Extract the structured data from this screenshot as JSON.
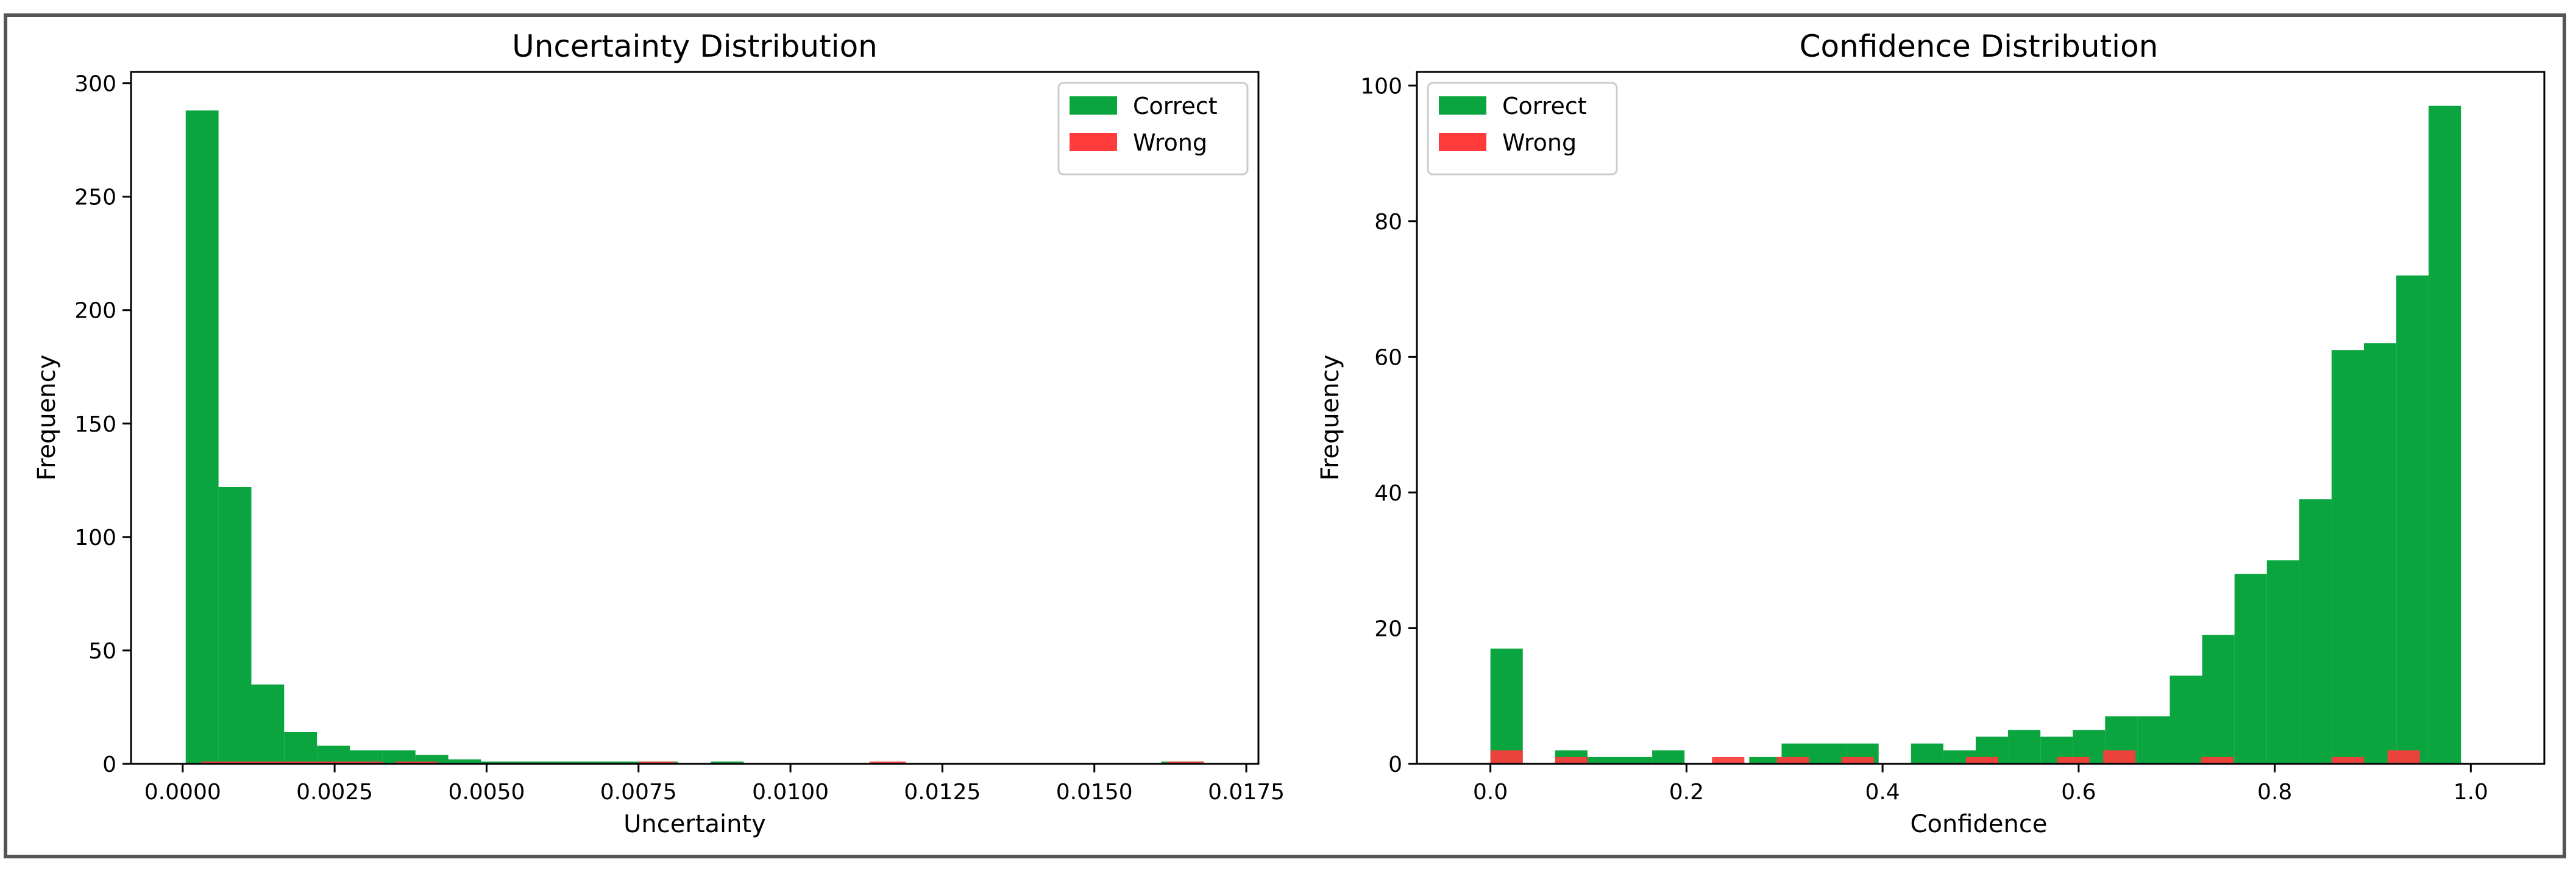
{
  "colors": {
    "correct": "#0aa53f",
    "wrong": "#ff3b3b"
  },
  "chart_data": [
    {
      "type": "bar",
      "title": "Uncertainty Distribution",
      "xlabel": "Uncertainty",
      "ylabel": "Frequency",
      "xlim": [
        -0.00085,
        0.0177
      ],
      "ylim": [
        0,
        305
      ],
      "xticks": [
        0.0,
        0.0025,
        0.005,
        0.0075,
        0.01,
        0.0125,
        0.015,
        0.0175
      ],
      "xtick_labels": [
        "0.0000",
        "0.0025",
        "0.0050",
        "0.0075",
        "0.0100",
        "0.0125",
        "0.0150",
        "0.0175"
      ],
      "yticks": [
        0,
        50,
        100,
        150,
        200,
        250,
        300
      ],
      "ytick_labels": [
        "0",
        "50",
        "100",
        "150",
        "200",
        "250",
        "300"
      ],
      "legend_position": "top-right",
      "series": [
        {
          "name": "Correct",
          "bins": [
            [
              5e-05,
              0.00059,
              288
            ],
            [
              0.00059,
              0.00113,
              122
            ],
            [
              0.00113,
              0.00167,
              35
            ],
            [
              0.00167,
              0.00221,
              14
            ],
            [
              0.00221,
              0.00275,
              8
            ],
            [
              0.00275,
              0.00329,
              6
            ],
            [
              0.00329,
              0.00383,
              6
            ],
            [
              0.00383,
              0.00437,
              4
            ],
            [
              0.00437,
              0.00491,
              2
            ],
            [
              0.00491,
              0.00545,
              1
            ],
            [
              0.00545,
              0.00599,
              1
            ],
            [
              0.00599,
              0.00653,
              1
            ],
            [
              0.00653,
              0.00707,
              1
            ],
            [
              0.00707,
              0.00761,
              1
            ],
            [
              0.00761,
              0.00815,
              1
            ],
            [
              0.00815,
              0.00869,
              0
            ],
            [
              0.00869,
              0.00923,
              1
            ],
            [
              0.0161,
              0.0168,
              1
            ]
          ]
        },
        {
          "name": "Wrong",
          "bins": [
            [
              0.0003,
              0.0009,
              1
            ],
            [
              0.0009,
              0.0015,
              1
            ],
            [
              0.0015,
              0.0021,
              1
            ],
            [
              0.0021,
              0.0027,
              1
            ],
            [
              0.0027,
              0.0033,
              1
            ],
            [
              0.0035,
              0.0042,
              1
            ],
            [
              0.0075,
              0.0081,
              1
            ],
            [
              0.0113,
              0.0119,
              1
            ],
            [
              0.0162,
              0.0168,
              1
            ]
          ]
        }
      ]
    },
    {
      "type": "bar",
      "title": "Confidence Distribution",
      "xlabel": "Confidence",
      "ylabel": "Frequency",
      "xlim": [
        -0.075,
        1.075
      ],
      "ylim": [
        0,
        102
      ],
      "xticks": [
        0.0,
        0.2,
        0.4,
        0.6,
        0.8,
        1.0
      ],
      "xtick_labels": [
        "0.0",
        "0.2",
        "0.4",
        "0.6",
        "0.8",
        "1.0"
      ],
      "yticks": [
        0,
        20,
        40,
        60,
        80,
        100
      ],
      "ytick_labels": [
        "0",
        "20",
        "40",
        "60",
        "80",
        "100"
      ],
      "legend_position": "top-left",
      "series": [
        {
          "name": "Correct",
          "bins": [
            [
              0.0,
              0.033,
              17
            ],
            [
              0.033,
              0.066,
              0
            ],
            [
              0.066,
              0.099,
              2
            ],
            [
              0.099,
              0.132,
              1
            ],
            [
              0.132,
              0.165,
              1
            ],
            [
              0.165,
              0.198,
              2
            ],
            [
              0.198,
              0.231,
              0
            ],
            [
              0.231,
              0.264,
              0
            ],
            [
              0.264,
              0.297,
              1
            ],
            [
              0.297,
              0.33,
              3
            ],
            [
              0.33,
              0.363,
              3
            ],
            [
              0.363,
              0.396,
              3
            ],
            [
              0.396,
              0.429,
              0
            ],
            [
              0.429,
              0.462,
              3
            ],
            [
              0.462,
              0.495,
              2
            ],
            [
              0.495,
              0.528,
              4
            ],
            [
              0.528,
              0.561,
              5
            ],
            [
              0.561,
              0.594,
              4
            ],
            [
              0.594,
              0.627,
              5
            ],
            [
              0.627,
              0.66,
              7
            ],
            [
              0.66,
              0.693,
              7
            ],
            [
              0.693,
              0.726,
              13
            ],
            [
              0.726,
              0.759,
              19
            ],
            [
              0.759,
              0.792,
              28
            ],
            [
              0.792,
              0.825,
              30
            ],
            [
              0.825,
              0.858,
              39
            ],
            [
              0.858,
              0.891,
              61
            ],
            [
              0.891,
              0.924,
              62
            ],
            [
              0.924,
              0.957,
              72
            ],
            [
              0.957,
              0.99,
              97
            ]
          ]
        },
        {
          "name": "Wrong",
          "bins": [
            [
              0.0,
              0.033,
              2
            ],
            [
              0.066,
              0.099,
              1
            ],
            [
              0.226,
              0.259,
              1
            ],
            [
              0.292,
              0.325,
              1
            ],
            [
              0.358,
              0.391,
              1
            ],
            [
              0.485,
              0.518,
              1
            ],
            [
              0.578,
              0.611,
              1
            ],
            [
              0.625,
              0.658,
              2
            ],
            [
              0.725,
              0.758,
              1
            ],
            [
              0.858,
              0.891,
              1
            ],
            [
              0.915,
              0.948,
              2
            ]
          ]
        }
      ]
    }
  ]
}
